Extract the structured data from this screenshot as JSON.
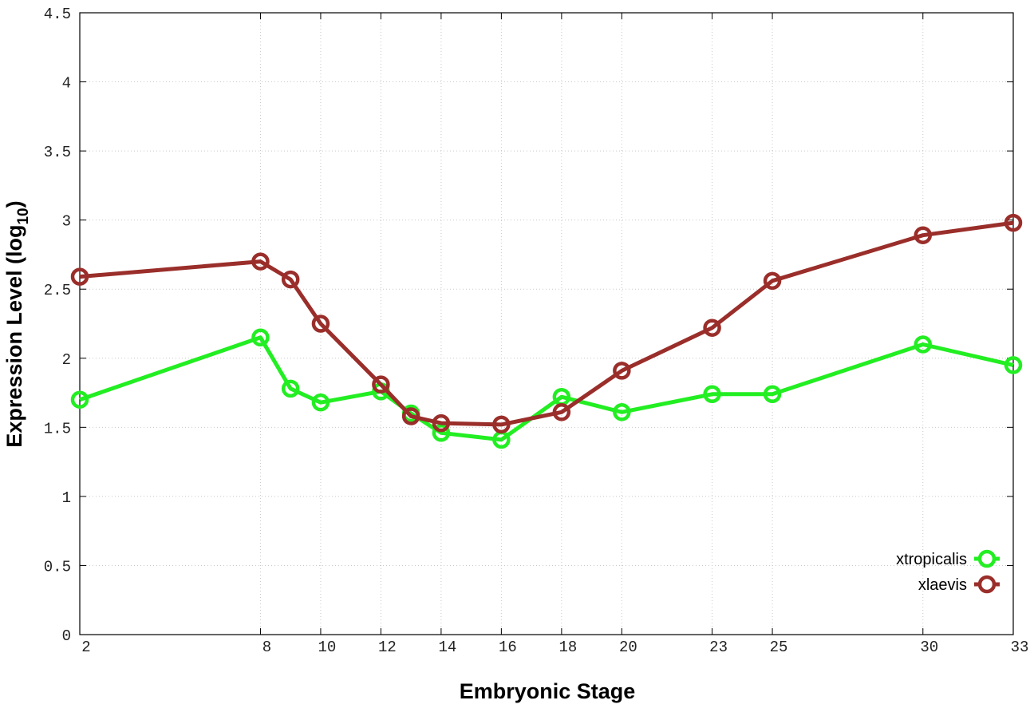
{
  "chart_data": {
    "type": "line",
    "title": "",
    "xlabel": "Embryonic Stage",
    "ylabel_main": "Expression Level (log",
    "ylabel_sub": "10",
    "ylabel_close": ")",
    "xlim": [
      2,
      33
    ],
    "ylim": [
      0,
      4.5
    ],
    "x_ticks": [
      2,
      8,
      10,
      12,
      14,
      16,
      18,
      20,
      23,
      25,
      30,
      33
    ],
    "y_ticks": [
      0,
      0.5,
      1,
      1.5,
      2,
      2.5,
      3,
      3.5,
      4,
      4.5
    ],
    "y_tick_labels": [
      "0",
      "0.5",
      "1",
      "1.5",
      "2",
      "2.5",
      "3",
      "3.5",
      "4",
      "4.5"
    ],
    "grid": true,
    "legend_position": "bottom-right",
    "series": [
      {
        "name": "xtropicalis",
        "color": "#22ee22",
        "x": [
          2,
          8,
          9,
          10,
          12,
          13,
          14,
          16,
          18,
          20,
          23,
          25,
          30,
          33
        ],
        "y": [
          1.7,
          2.15,
          1.78,
          1.68,
          1.76,
          1.6,
          1.46,
          1.41,
          1.72,
          1.61,
          1.74,
          1.74,
          2.1,
          1.95
        ]
      },
      {
        "name": "xlaevis",
        "color": "#9a2e2a",
        "x": [
          2,
          8,
          9,
          10,
          12,
          13,
          14,
          16,
          18,
          20,
          23,
          25,
          30,
          33
        ],
        "y": [
          2.59,
          2.7,
          2.57,
          2.25,
          1.81,
          1.58,
          1.53,
          1.52,
          1.61,
          1.91,
          2.22,
          2.56,
          2.89,
          2.98
        ]
      }
    ]
  }
}
